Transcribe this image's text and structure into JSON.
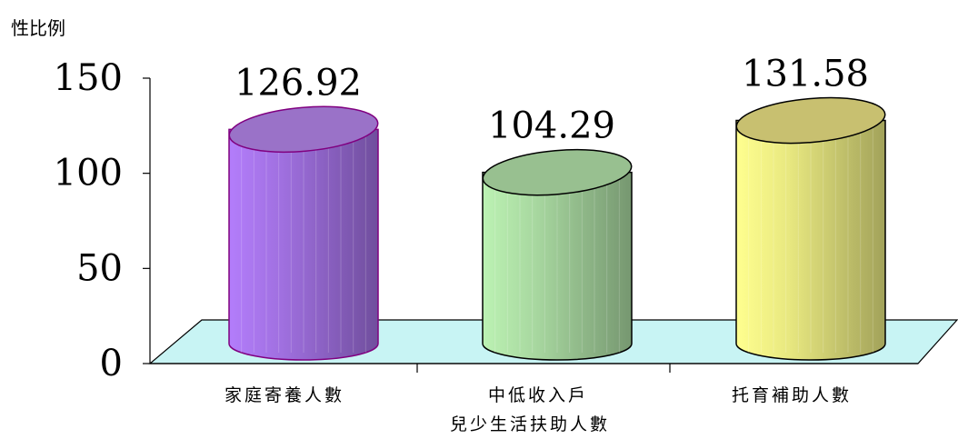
{
  "chart_data": {
    "type": "bar",
    "style": "3d-cylinder",
    "ylabel": "性比例",
    "xlabel": "",
    "categories": [
      "家庭寄養人數",
      "中低收入戶",
      "托育補助人數"
    ],
    "group_label": "兒少生活扶助人數",
    "values": [
      126.92,
      104.29,
      131.58
    ],
    "data_labels": [
      "126.92",
      "104.29",
      "131.58"
    ],
    "ylim": [
      0,
      150
    ],
    "yticks": [
      "0",
      "50",
      "100",
      "150"
    ],
    "colors": {
      "bars": [
        "#a070e0",
        "#a8d8a0",
        "#e8e880"
      ],
      "bar_tops": [
        "#9a72c8",
        "#98c090",
        "#c8c070"
      ],
      "bar_outlines": [
        "#800080",
        "#000000",
        "#000000"
      ],
      "floor": "#c8f4f4"
    },
    "grid": false,
    "legend": "none"
  }
}
